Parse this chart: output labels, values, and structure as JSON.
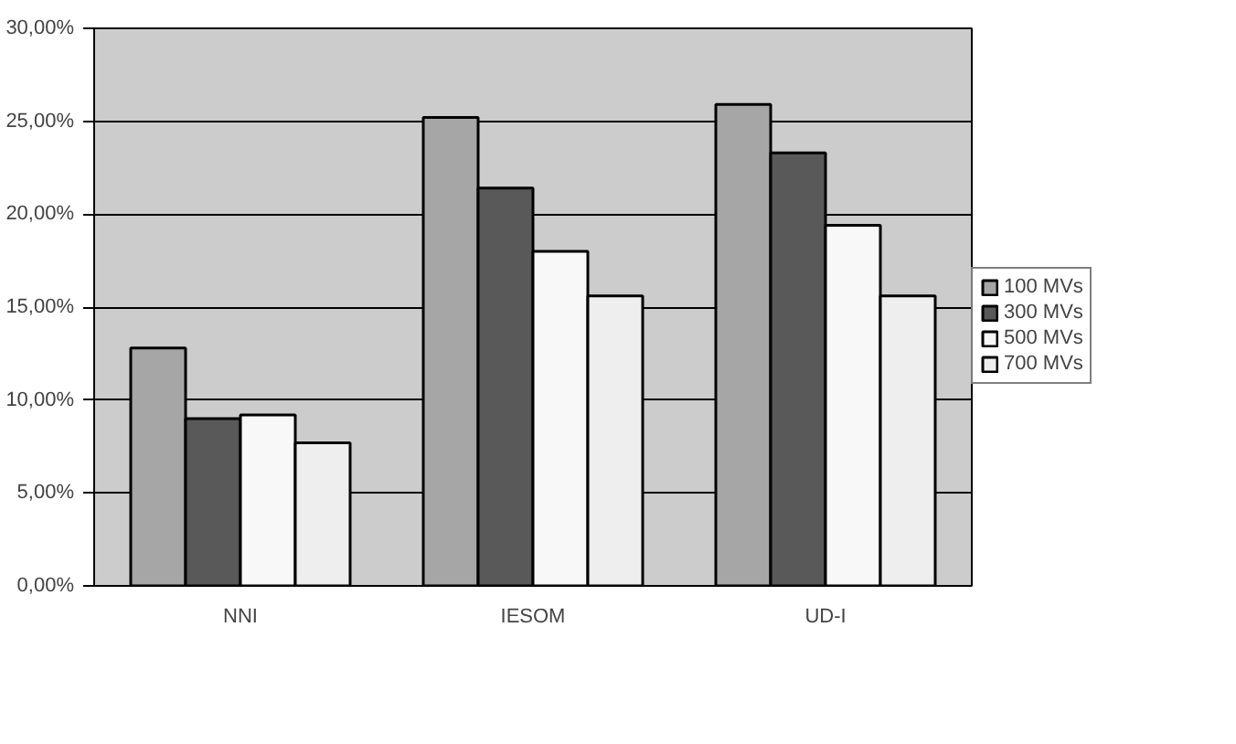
{
  "chart_data": {
    "type": "bar",
    "categories": [
      "NNI",
      "IESOM",
      "UD-I"
    ],
    "series": [
      {
        "name": "100 MVs",
        "color": "#a6a6a6",
        "values": [
          12.8,
          25.2,
          25.9
        ]
      },
      {
        "name": "300 MVs",
        "color": "#595959",
        "values": [
          9.0,
          21.4,
          23.3
        ]
      },
      {
        "name": "500 MVs",
        "color": "#f8f8f8",
        "values": [
          9.2,
          18.0,
          19.4
        ]
      },
      {
        "name": "700 MVs",
        "color": "#eeeeee",
        "values": [
          7.7,
          15.6,
          15.6
        ]
      }
    ],
    "ylim": [
      0,
      30
    ],
    "yticks": [
      {
        "value": 0,
        "label": "0,00%"
      },
      {
        "value": 5,
        "label": "5,00%"
      },
      {
        "value": 10,
        "label": "10,00%"
      },
      {
        "value": 15,
        "label": "15,00%"
      },
      {
        "value": 20,
        "label": "20,00%"
      },
      {
        "value": 25,
        "label": "25,00%"
      },
      {
        "value": 30,
        "label": "30,00%"
      }
    ],
    "grid": "y",
    "legend": "right"
  }
}
